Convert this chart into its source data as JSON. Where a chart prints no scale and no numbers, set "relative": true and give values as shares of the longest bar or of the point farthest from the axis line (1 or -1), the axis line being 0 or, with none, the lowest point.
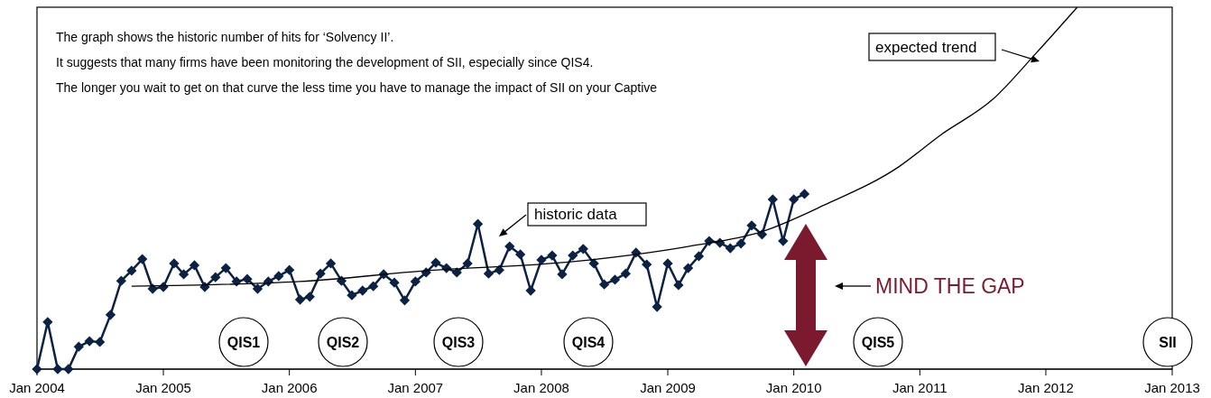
{
  "chart_data": {
    "type": "line",
    "relative": true,
    "grid": false,
    "xlim": [
      "2004-01",
      "2013-01"
    ],
    "xticks": [
      {
        "value": "2004-01",
        "label": "Jan 2004"
      },
      {
        "value": "2005-01",
        "label": "Jan 2005"
      },
      {
        "value": "2006-01",
        "label": "Jan 2006"
      },
      {
        "value": "2007-01",
        "label": "Jan 2007"
      },
      {
        "value": "2008-01",
        "label": "Jan 2008"
      },
      {
        "value": "2009-01",
        "label": "Jan 2009"
      },
      {
        "value": "2010-01",
        "label": "Jan 2010"
      },
      {
        "value": "2011-01",
        "label": "Jan 2011"
      },
      {
        "value": "2012-01",
        "label": "Jan 2012"
      },
      {
        "value": "2013-01",
        "label": "Jan 2013"
      }
    ],
    "series": [
      {
        "color": "#0b2244",
        "marker": "diamond",
        "x": [
          "2004-01",
          "2004-02",
          "2004-03",
          "2004-04",
          "2004-05",
          "2004-06",
          "2004-07",
          "2004-08",
          "2004-09",
          "2004-10",
          "2004-11",
          "2004-12",
          "2005-01",
          "2005-02",
          "2005-03",
          "2005-04",
          "2005-05",
          "2005-06",
          "2005-07",
          "2005-08",
          "2005-09",
          "2005-10",
          "2005-11",
          "2005-12",
          "2006-01",
          "2006-02",
          "2006-03",
          "2006-04",
          "2006-05",
          "2006-06",
          "2006-07",
          "2006-08",
          "2006-09",
          "2006-10",
          "2006-11",
          "2006-12",
          "2007-01",
          "2007-02",
          "2007-03",
          "2007-04",
          "2007-05",
          "2007-06",
          "2007-07",
          "2007-08",
          "2007-09",
          "2007-10",
          "2007-11",
          "2007-12",
          "2008-01",
          "2008-02",
          "2008-03",
          "2008-04",
          "2008-05",
          "2008-06",
          "2008-07",
          "2008-08",
          "2008-09",
          "2008-10",
          "2008-11",
          "2008-12",
          "2009-01",
          "2009-02",
          "2009-03",
          "2009-04",
          "2009-05",
          "2009-06",
          "2009-07",
          "2009-08",
          "2009-09",
          "2009-10",
          "2009-11",
          "2009-12",
          "2010-01",
          "2010-02"
        ],
        "values": [
          0,
          0.13,
          0,
          0,
          0.062,
          0.077,
          0.075,
          0.15,
          0.244,
          0.272,
          0.304,
          0.222,
          0.227,
          0.292,
          0.262,
          0.287,
          0.227,
          0.254,
          0.279,
          0.242,
          0.249,
          0.222,
          0.242,
          0.257,
          0.274,
          0.192,
          0.2,
          0.264,
          0.292,
          0.244,
          0.204,
          0.217,
          0.229,
          0.262,
          0.239,
          0.19,
          0.242,
          0.267,
          0.294,
          0.279,
          0.267,
          0.292,
          0.401,
          0.264,
          0.274,
          0.339,
          0.317,
          0.217,
          0.302,
          0.314,
          0.262,
          0.314,
          0.332,
          0.292,
          0.234,
          0.247,
          0.264,
          0.322,
          0.289,
          0.172,
          0.292,
          0.232,
          0.279,
          0.312,
          0.354,
          0.349,
          0.334,
          0.347,
          0.397,
          0.372,
          0.469,
          0.354,
          0.469,
          0.484
        ]
      },
      {
        "color": "#000000",
        "marker": "none",
        "x": [
          "2004-10",
          "2006-02",
          "2007-02",
          "2008-04",
          "2009-03",
          "2009-10",
          "2010-04",
          "2010-11",
          "2011-03",
          "2011-08",
          "2011-12",
          "2012-04"
        ],
        "values": [
          0.229,
          0.242,
          0.272,
          0.297,
          0.339,
          0.38,
          0.454,
          0.559,
          0.646,
          0.746,
          0.87,
          1
        ]
      }
    ],
    "annotations": [
      "The graph shows the historic number of hits for ‘Solvency II’.",
      "It suggests that many firms have been monitoring the development of SII, especially since QIS4.",
      "The longer you wait to get on that curve the less time you have to manage the impact of SII on your Captive",
      "historic data",
      "expected trend",
      "MIND THE GAP",
      "QIS1",
      "QIS2",
      "QIS3",
      "QIS4",
      "QIS5",
      "SII"
    ]
  }
}
